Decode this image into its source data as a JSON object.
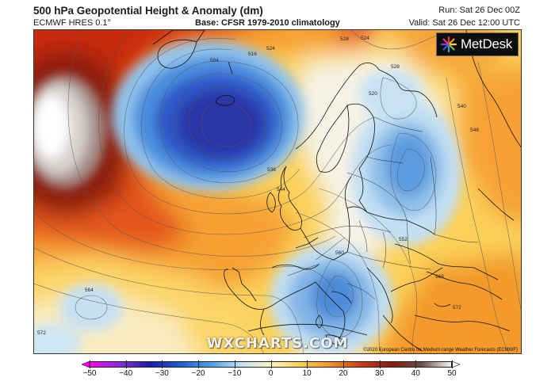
{
  "header": {
    "title": "500 hPa Geopotential Height & Anomaly (dm)",
    "model": "ECMWF HRES 0.1°",
    "base": "Base: CFSR 1979-2010 climatology",
    "run": "Run: Sat 26 Dec 00Z",
    "valid": "Valid: Sat 26 Dec 12:00 UTC"
  },
  "logo": {
    "text": "MetDesk",
    "icon": "metdesk-logo-icon"
  },
  "watermark": "WXCHARTS.COM",
  "copyright": "©2020 European Centre for Medium-range Weather Forecasts (ECMWF)",
  "contour_labels": [
    "504",
    "516",
    "524",
    "528",
    "524",
    "520",
    "528",
    "540",
    "548",
    "536",
    "544",
    "552",
    "560",
    "568",
    "572",
    "564",
    "572"
  ],
  "colorbar": {
    "ticks": [
      "−50",
      "−40",
      "−30",
      "−20",
      "−10",
      "0",
      "10",
      "20",
      "30",
      "40",
      "50"
    ],
    "colors": [
      "#ff00ff",
      "#8a2be2",
      "#1b1bb0",
      "#1f5fd6",
      "#4aa0e8",
      "#bfe0f5",
      "#fff7c0",
      "#ffd23f",
      "#f59020",
      "#d33a10",
      "#8b1a0c",
      "#6b4a44",
      "#f5f5f5"
    ]
  }
}
